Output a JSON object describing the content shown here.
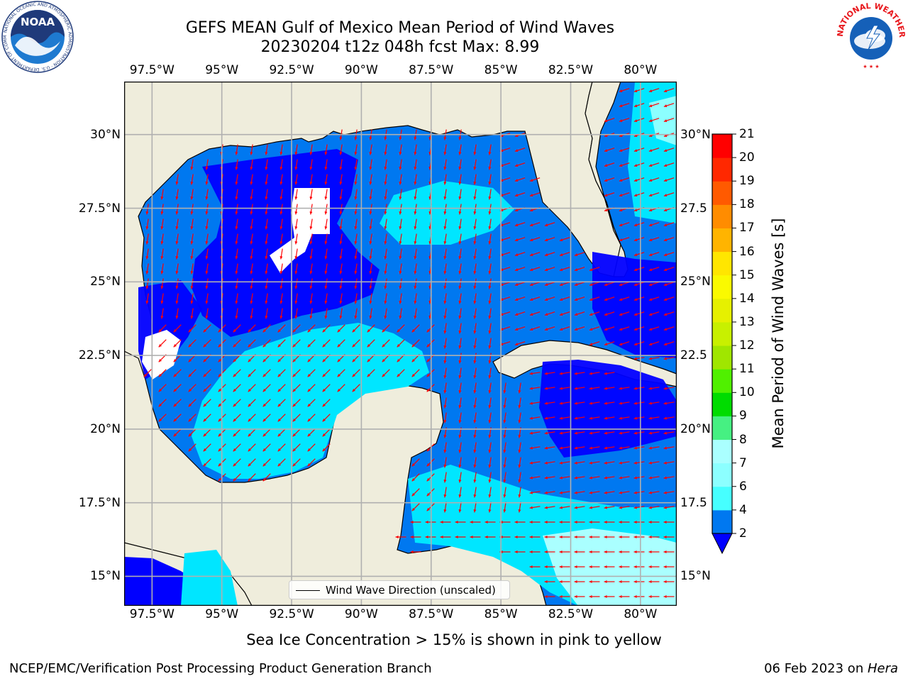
{
  "title": {
    "line1": "GEFS MEAN Gulf of Mexico Mean Period of Wind Waves",
    "line2": "20230204 t12z 048h fcst   Max: 8.99"
  },
  "map": {
    "lon_range": [
      -98.5,
      -78.7
    ],
    "lat_range": [
      14.0,
      31.8
    ],
    "top_lon_ticks": [
      "97.5°W",
      "95°W",
      "92.5°W",
      "90°W",
      "87.5°W",
      "85°W",
      "82.5°W",
      "80°W"
    ],
    "bottom_lon_ticks": [
      "97.5°W",
      "95°W",
      "92.5°W",
      "90°W",
      "87.5°W",
      "85°W",
      "82.5°W",
      "80°W"
    ],
    "left_lat_ticks": [
      "30°N",
      "27.5°N",
      "25°N",
      "22.5°N",
      "20°N",
      "17.5°N",
      "15°N"
    ],
    "right_lat_ticks": [
      "30°N",
      "27.5",
      "25°N",
      "22.5",
      "20°N",
      "17.5",
      "15°N"
    ],
    "legend_label": "Wind Wave Direction (unscaled)",
    "land_color": "#efeddc",
    "grid_color": "#b0b0b0",
    "arrow_color": "#ff0000"
  },
  "colorbar": {
    "label": "Mean Period of Wind Waves [s]",
    "tick_labels": [
      "2",
      "4",
      "6",
      "7",
      "8",
      "9",
      "10",
      "11",
      "12",
      "13",
      "14",
      "15",
      "16",
      "17",
      "18",
      "19",
      "20",
      "21"
    ],
    "colors": [
      "#0078f0",
      "#00e6ff",
      "#46ffff",
      "#8cffff",
      "#aaffff",
      "#46f082",
      "#00dc00",
      "#50f000",
      "#a0e600",
      "#c8f000",
      "#e6f000",
      "#fafa00",
      "#ffe600",
      "#ffb400",
      "#ff8c00",
      "#ff5a00",
      "#ff2800",
      "#ff0000"
    ],
    "extend_color": "#0000ff"
  },
  "logos": {
    "noaa_text": "NOAA",
    "noaa_ring_text": "NATIONAL OCEANIC AND ATMOSPHERIC ADMINISTRATION · U.S. DEPARTMENT OF COMMERCE ·",
    "nws_ring_text": "NATIONAL WEATHER SERVICE"
  },
  "ice_note": "Sea Ice Concentration > 15% is shown in pink to yellow",
  "footer": {
    "left": "NCEP/EMC/Verification Post Processing Product Generation Branch",
    "right_date": "06 Feb 2023 on ",
    "right_host": "Hera"
  }
}
